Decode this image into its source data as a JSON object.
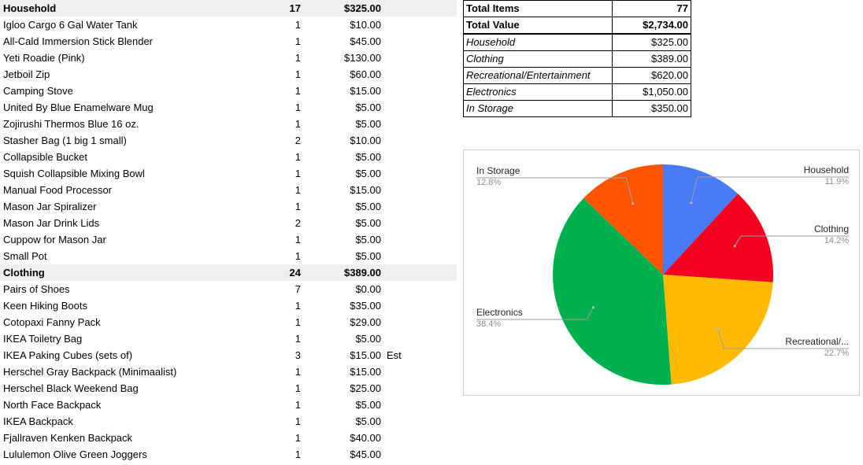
{
  "inventory": [
    {
      "name": "Household",
      "qty": "17",
      "value": "$325.00",
      "category": true
    },
    {
      "name": "Igloo Cargo 6 Gal Water Tank",
      "qty": "1",
      "value": "$10.00"
    },
    {
      "name": "All-Cald Immersion Stick Blender",
      "qty": "1",
      "value": "$45.00"
    },
    {
      "name": "Yeti Roadie (Pink)",
      "qty": "1",
      "value": "$130.00"
    },
    {
      "name": "Jetboil Zip",
      "qty": "1",
      "value": "$60.00"
    },
    {
      "name": "Camping Stove",
      "qty": "1",
      "value": "$15.00"
    },
    {
      "name": "United By Blue Enamelware Mug",
      "qty": "1",
      "value": "$5.00"
    },
    {
      "name": "Zojirushi Thermos Blue 16 oz.",
      "qty": "1",
      "value": "$5.00"
    },
    {
      "name": "Stasher Bag (1 big 1 small)",
      "qty": "2",
      "value": "$10.00"
    },
    {
      "name": "Collapsible Bucket",
      "qty": "1",
      "value": "$5.00"
    },
    {
      "name": "Squish Collapsible Mixing Bowl",
      "qty": "1",
      "value": "$5.00"
    },
    {
      "name": "Manual Food Processor",
      "qty": "1",
      "value": "$15.00"
    },
    {
      "name": "Mason Jar Spiralizer",
      "qty": "1",
      "value": "$5.00"
    },
    {
      "name": "Mason Jar Drink Lids",
      "qty": "2",
      "value": "$5.00"
    },
    {
      "name": "Cuppow for Mason Jar",
      "qty": "1",
      "value": "$5.00"
    },
    {
      "name": "Small Pot",
      "qty": "1",
      "value": "$5.00"
    },
    {
      "name": "Clothing",
      "qty": "24",
      "value": "$389.00",
      "category": true
    },
    {
      "name": "Pairs of Shoes",
      "qty": "7",
      "value": "$0.00"
    },
    {
      "name": "Keen Hiking Boots",
      "qty": "1",
      "value": "$35.00"
    },
    {
      "name": "Cotopaxi Fanny Pack",
      "qty": "1",
      "value": "$29.00"
    },
    {
      "name": "IKEA Toiletry Bag",
      "qty": "1",
      "value": "$5.00"
    },
    {
      "name": "IKEA Paking Cubes (sets of)",
      "qty": "3",
      "value": "$15.00",
      "note": "Est"
    },
    {
      "name": "Herschel Gray Backpack (Minimaalist)",
      "qty": "1",
      "value": "$15.00"
    },
    {
      "name": "Herschel Black Weekend Bag",
      "qty": "1",
      "value": "$25.00"
    },
    {
      "name": "North Face Backpack",
      "qty": "1",
      "value": "$5.00"
    },
    {
      "name": "IKEA Backpack",
      "qty": "1",
      "value": "$5.00"
    },
    {
      "name": "Fjallraven Kenken Backpack",
      "qty": "1",
      "value": "$40.00"
    },
    {
      "name": "Lululemon Olive Green Joggers",
      "qty": "1",
      "value": "$45.00"
    }
  ],
  "summary": {
    "total_items_label": "Total Items",
    "total_items": "77",
    "total_value_label": "Total Value",
    "total_value": "$2,734.00",
    "rows": [
      {
        "label": "Household",
        "value": "$325.00"
      },
      {
        "label": "Clothing",
        "value": "$389.00"
      },
      {
        "label": "Recreational/Entertainment",
        "value": "$620.00"
      },
      {
        "label": "Electronics",
        "value": "$1,050.00"
      },
      {
        "label": "In Storage",
        "value": "$350.00"
      }
    ]
  },
  "chart_data": {
    "type": "pie",
    "slices": [
      {
        "label": "Household",
        "display": "Household",
        "value": 325,
        "percent": "11.9%",
        "color": "#4a7bf7"
      },
      {
        "label": "Clothing",
        "display": "Clothing",
        "value": 389,
        "percent": "14.2%",
        "color": "#f40021"
      },
      {
        "label": "Recreational/Entertainment",
        "display": "Recreational/...",
        "value": 620,
        "percent": "22.7%",
        "color": "#ffba00"
      },
      {
        "label": "Electronics",
        "display": "Electronics",
        "value": 1050,
        "percent": "38.4%",
        "color": "#00b04f"
      },
      {
        "label": "In Storage",
        "display": "In Storage",
        "value": 350,
        "percent": "12.8%",
        "color": "#ff5500"
      }
    ],
    "legend": "labels outside with leader lines"
  }
}
